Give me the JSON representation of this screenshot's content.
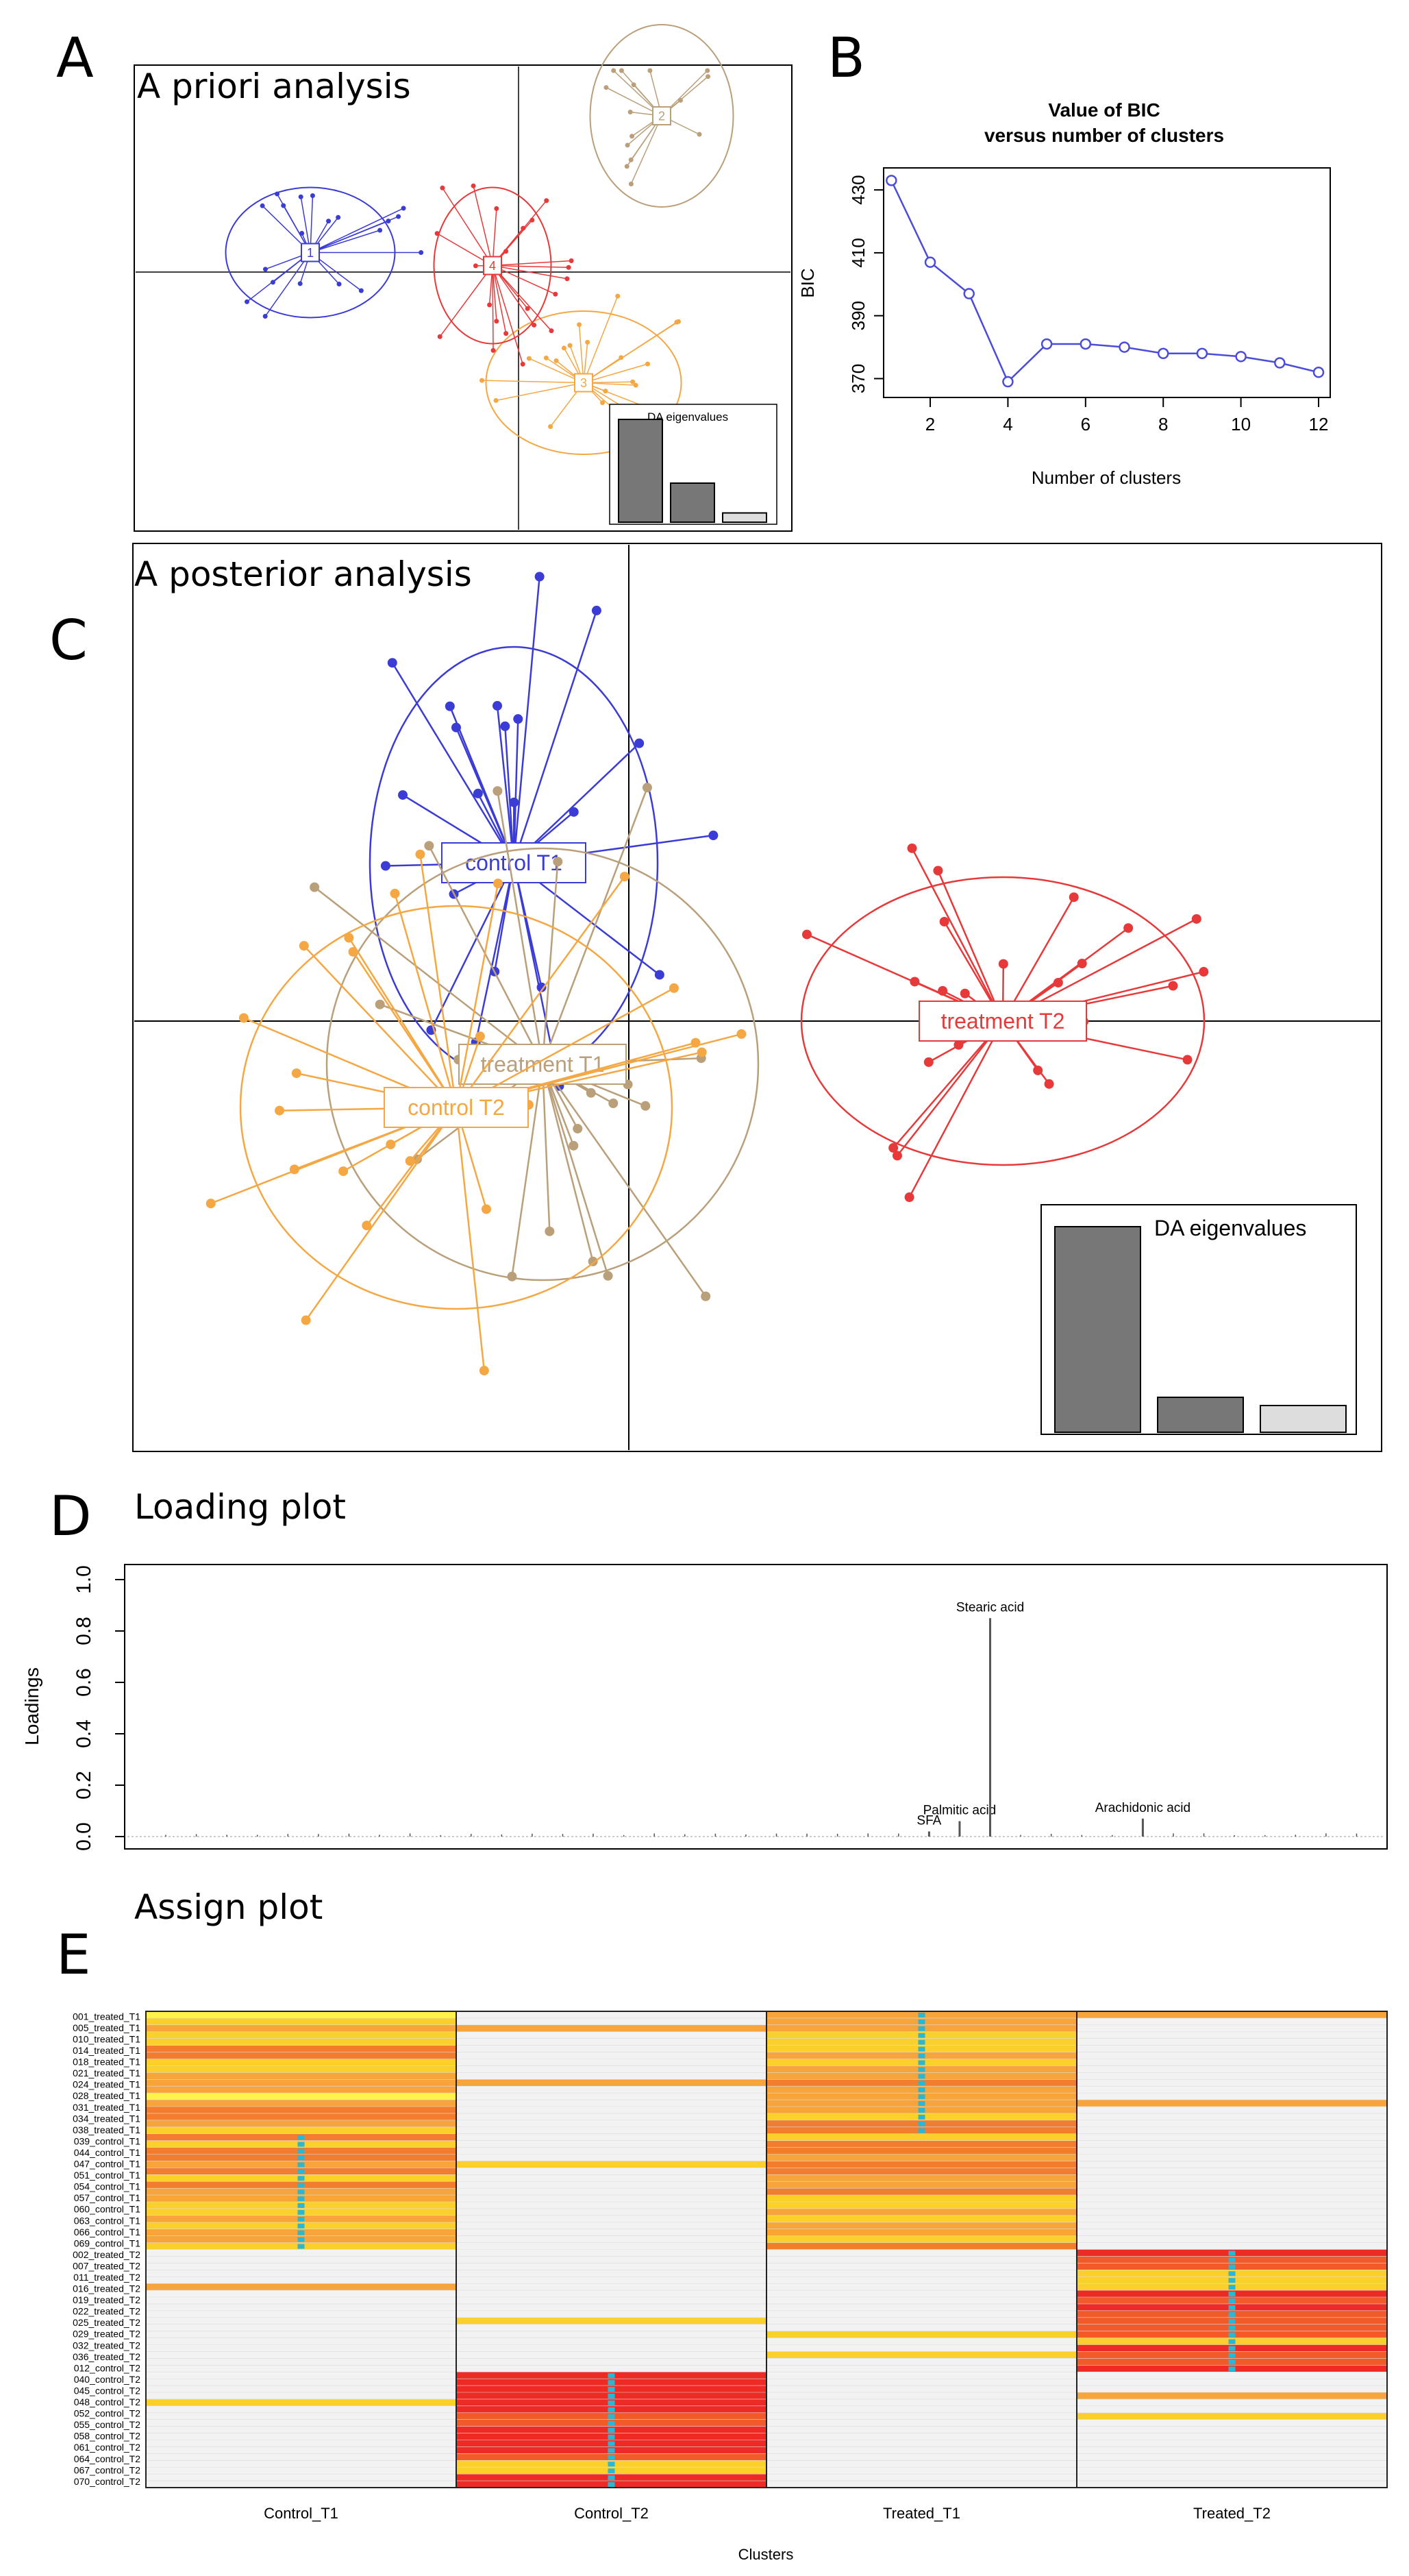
{
  "panel_letters": {
    "a": "A",
    "b": "B",
    "c": "C",
    "d": "D",
    "e": "E"
  },
  "chart_data": [
    {
      "id": "A",
      "type": "scatter",
      "title": "A priori analysis",
      "eigen_label": "DA eigenvalues",
      "eigenvalues": [
        1.0,
        0.38,
        0.09
      ],
      "clusters": [
        {
          "label": "1",
          "color": "#3b3bd6",
          "center": [
            -1.6,
            0.15
          ],
          "radii": [
            0.65,
            0.5
          ],
          "n": 20
        },
        {
          "label": "2",
          "color": "#b99f7a",
          "center": [
            1.1,
            1.2
          ],
          "radii": [
            0.55,
            0.7
          ],
          "n": 15
        },
        {
          "label": "3",
          "color": "#f4a742",
          "center": [
            0.5,
            -0.85
          ],
          "radii": [
            0.75,
            0.55
          ],
          "n": 22
        },
        {
          "label": "4",
          "color": "#e8393a",
          "center": [
            -0.2,
            0.05
          ],
          "radii": [
            0.45,
            0.6
          ],
          "n": 22
        }
      ]
    },
    {
      "id": "B",
      "type": "line",
      "title_line1": "Value of BIC",
      "title_line2": "versus number of clusters",
      "xlabel": "Number of clusters",
      "ylabel": "BIC",
      "x": [
        1,
        2,
        3,
        4,
        5,
        6,
        7,
        8,
        9,
        10,
        11,
        12
      ],
      "y": [
        433,
        407,
        397,
        369,
        381,
        381,
        380,
        378,
        378,
        377,
        375,
        372
      ],
      "xticks": [
        2,
        4,
        6,
        8,
        10,
        12
      ],
      "yticks": [
        370,
        390,
        410,
        430
      ],
      "xlim": [
        0.8,
        12.3
      ],
      "ylim": [
        364,
        437
      ]
    },
    {
      "id": "C",
      "type": "scatter",
      "title": "A posterior analysis",
      "eigen_label": "DA eigenvalues",
      "eigenvalues": [
        1.0,
        0.17,
        0.13
      ],
      "clusters": [
        {
          "label": "control T1",
          "color": "#3b3bd6",
          "center": [
            -0.4,
            0.55
          ],
          "radii": [
            0.5,
            0.75
          ],
          "n": 24
        },
        {
          "label": "treatment T1",
          "color": "#b99f7a",
          "center": [
            -0.3,
            -0.15
          ],
          "radii": [
            0.75,
            0.75
          ],
          "n": 20
        },
        {
          "label": "control T2",
          "color": "#f4a742",
          "center": [
            -0.6,
            -0.3
          ],
          "radii": [
            0.75,
            0.7
          ],
          "n": 26
        },
        {
          "label": "treatment T2",
          "color": "#e8393a",
          "center": [
            1.3,
            0.0
          ],
          "radii": [
            0.7,
            0.5
          ],
          "n": 24
        }
      ]
    },
    {
      "id": "D",
      "type": "bar",
      "title": "Loading plot",
      "ylabel": "Loadings",
      "yticks": [
        "0.0",
        "0.2",
        "0.4",
        "0.6",
        "0.8",
        "1.0"
      ],
      "ylim": [
        0,
        1.05
      ],
      "n_variables": 40,
      "annotations": [
        {
          "label": "Stearic acid",
          "index": 27,
          "value": 0.85
        },
        {
          "label": "Palmitic acid",
          "index": 26,
          "value": 0.06
        },
        {
          "label": "SFA",
          "index": 25,
          "value": 0.02
        },
        {
          "label": "Arachidonic acid",
          "index": 32,
          "value": 0.07
        }
      ]
    },
    {
      "id": "E",
      "type": "heatmap",
      "title": "Assign plot",
      "xlabel": "Clusters",
      "columns": [
        "Control_T1",
        "Control_T2",
        "Treated_T1",
        "Treated_T2"
      ],
      "row_labels": [
        "001_treated_T1",
        "005_treated_T1",
        "010_treated_T1",
        "014_treated_T1",
        "018_treated_T1",
        "021_treated_T1",
        "024_treated_T1",
        "028_treated_T1",
        "031_treated_T1",
        "034_treated_T1",
        "038_treated_T1",
        "039_control_T1",
        "044_control_T1",
        "047_control_T1",
        "051_control_T1",
        "054_control_T1",
        "057_control_T1",
        "060_control_T1",
        "063_control_T1",
        "066_control_T1",
        "069_control_T1",
        "002_treated_T2",
        "007_treated_T2",
        "011_treated_T2",
        "016_treated_T2",
        "019_treated_T2",
        "022_treated_T2",
        "025_treated_T2",
        "029_treated_T2",
        "032_treated_T2",
        "036_treated_T2",
        "012_control_T2",
        "040_control_T2",
        "045_control_T2",
        "048_control_T2",
        "052_control_T2",
        "055_control_T2",
        "058_control_T2",
        "061_control_T2",
        "064_control_T2",
        "067_control_T2",
        "070_control_T2"
      ]
    }
  ]
}
